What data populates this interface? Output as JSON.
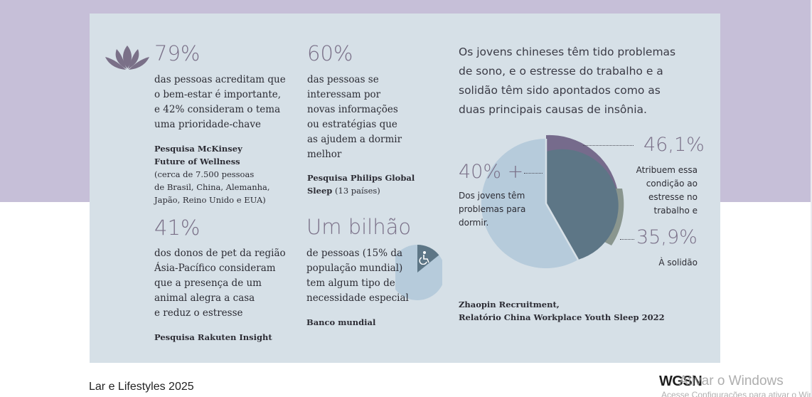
{
  "stats": {
    "s1": {
      "value": "79%",
      "text": "das pessoas acreditam que\no bem-estar é importante,\ne 42% consideram o tema\numa prioridade-chave",
      "source_title": "Pesquisa McKinsey\nFuture of Wellness",
      "source_detail": "(cerca de 7.500 pessoas\nde Brasil, China, Alemanha,\nJapão, Reino Unido e EUA)"
    },
    "s2": {
      "value": "60%",
      "text": "das pessoas se\ninteressam por\nnovas informações\nou estratégias que\nas ajudem a dormir\nmelhor",
      "source_title": "Pesquisa Philips Global\nSleep",
      "source_detail": " (13 países)"
    },
    "s3": {
      "value": "41%",
      "text": "dos donos de pet da região\nÁsia-Pacífico consideram\nque a presença de um\nanimal alegra a casa\ne reduz o estresse",
      "source_title": "Pesquisa Rakuten Insight"
    },
    "s4": {
      "value": "Um bilhão",
      "text": "de pessoas (15% da\npopulação mundial)\ntem algum tipo de\nnecessidade especial",
      "source_title": "Banco mundial"
    }
  },
  "sleep": {
    "headline": "Os jovens chineses têm tido problemas\nde sono, e o estresse do trabalho e a\nsolidão têm sido apontados como as\nduas principais causas de insônia.",
    "main_value": "40% +",
    "main_label": "Dos jovens têm\nproblemas para\ndormir.",
    "stress_value": "46,1%",
    "stress_label": "Atribuem essa\ncondição ao\nestresse no\ntrabalho e",
    "loneliness_value": "35,9%",
    "loneliness_label": "À solidão",
    "source_line1": "Zhaopin Recruitment,",
    "source_line2": "Relatório China Workplace Youth Sleep 2022"
  },
  "chart_data": {
    "type": "pie",
    "values": [
      40,
      46.1,
      35.9
    ],
    "labels": [
      "Dos jovens têm problemas para dormir.",
      "Atribuem essa condição ao estresse no trabalho e",
      "À solidão"
    ],
    "colors": [
      "#5d7686",
      "#766b8c",
      "#8a968f"
    ]
  },
  "footer": {
    "title": "Lar e Lifestyles 2025",
    "brand": "WGSN",
    "watermark_line1": "Ativar o Windows",
    "watermark_line2": "Acesse Configurações para ativar o Windows."
  },
  "colors": {
    "top_band": "#c6bfd8",
    "panel": "#d6e0e7",
    "accent_purple": "#766b8c",
    "slate": "#5d7686",
    "light_blue": "#b6cbdb"
  },
  "icons": [
    "lotus-icon",
    "accessibility-icon"
  ]
}
